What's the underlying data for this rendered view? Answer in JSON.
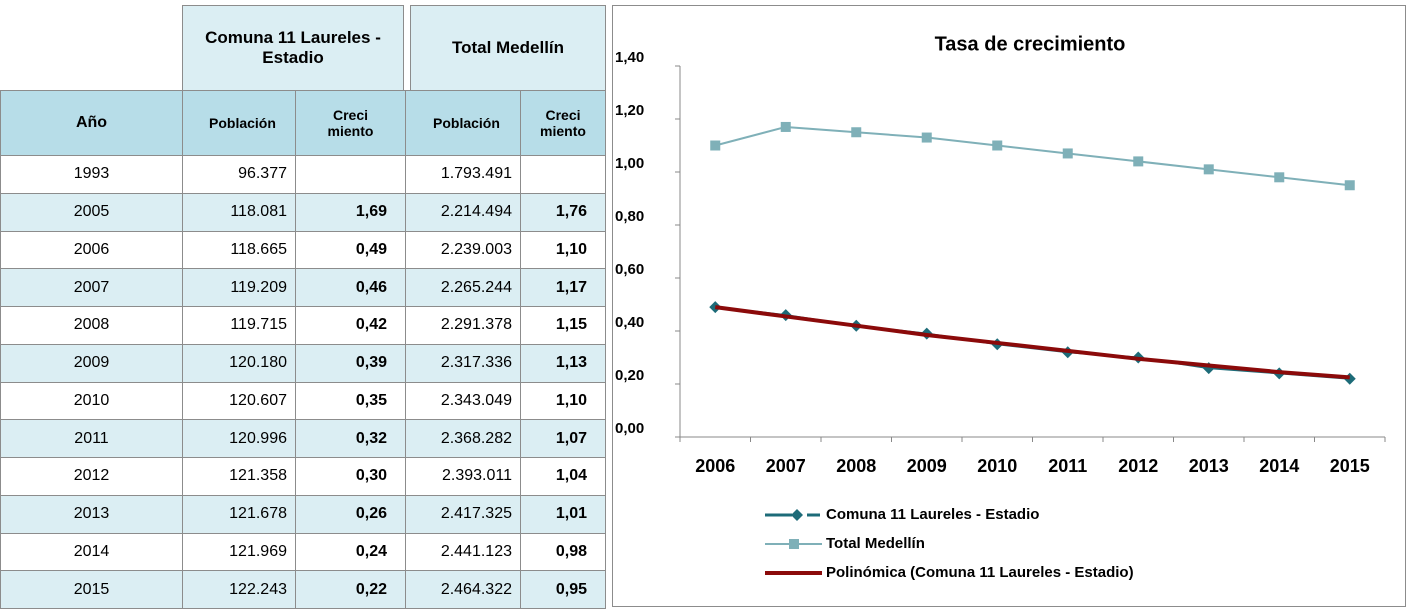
{
  "table": {
    "group_headers": [
      "Comuna 11 Laureles - Estadio",
      "Total Medellín"
    ],
    "columns": [
      "Año",
      "Población",
      "Creci miento",
      "Población",
      "Creci miento"
    ],
    "rows": [
      [
        "1993",
        "96.377",
        null,
        "1.793.491",
        null
      ],
      [
        "2005",
        "118.081",
        "1,69",
        "2.214.494",
        "1,76"
      ],
      [
        "2006",
        "118.665",
        "0,49",
        "2.239.003",
        "1,10"
      ],
      [
        "2007",
        "119.209",
        "0,46",
        "2.265.244",
        "1,17"
      ],
      [
        "2008",
        "119.715",
        "0,42",
        "2.291.378",
        "1,15"
      ],
      [
        "2009",
        "120.180",
        "0,39",
        "2.317.336",
        "1,13"
      ],
      [
        "2010",
        "120.607",
        "0,35",
        "2.343.049",
        "1,10"
      ],
      [
        "2011",
        "120.996",
        "0,32",
        "2.368.282",
        "1,07"
      ],
      [
        "2012",
        "121.358",
        "0,30",
        "2.393.011",
        "1,04"
      ],
      [
        "2013",
        "121.678",
        "0,26",
        "2.417.325",
        "1,01"
      ],
      [
        "2014",
        "121.969",
        "0,24",
        "2.441.123",
        "0,98"
      ],
      [
        "2015",
        "122.243",
        "0,22",
        "2.464.322",
        "0,95"
      ]
    ]
  },
  "chart_data": {
    "type": "line",
    "title": "Tasa de crecimiento",
    "categories": [
      "2006",
      "2007",
      "2008",
      "2009",
      "2010",
      "2011",
      "2012",
      "2013",
      "2014",
      "2015"
    ],
    "series": [
      {
        "name": "Comuna 11 Laureles - Estadio",
        "color": "#1d6b78",
        "marker": "diamond",
        "values": [
          0.49,
          0.46,
          0.42,
          0.39,
          0.35,
          0.32,
          0.3,
          0.26,
          0.24,
          0.22
        ]
      },
      {
        "name": "Total Medellín",
        "color": "#7fb0b8",
        "marker": "square",
        "values": [
          1.1,
          1.17,
          1.15,
          1.13,
          1.1,
          1.07,
          1.04,
          1.01,
          0.98,
          0.95
        ]
      },
      {
        "name": "Polinómica (Comuna 11 Laureles - Estadio)",
        "color": "#8b0a0a",
        "marker": "none",
        "values": [
          0.49,
          0.455,
          0.42,
          0.385,
          0.355,
          0.325,
          0.295,
          0.27,
          0.245,
          0.225
        ]
      }
    ],
    "ylim": [
      0,
      1.4
    ],
    "yticks": [
      {
        "value": 0,
        "label": "0,00"
      },
      {
        "value": 0.2,
        "label": "0,20"
      },
      {
        "value": 0.4,
        "label": "0,40"
      },
      {
        "value": 0.6,
        "label": "0,60"
      },
      {
        "value": 0.8,
        "label": "0,80"
      },
      {
        "value": 1.0,
        "label": "1,00"
      },
      {
        "value": 1.2,
        "label": "1,20"
      },
      {
        "value": 1.4,
        "label": "1,40"
      }
    ],
    "grid": false,
    "legend": "bottom"
  }
}
